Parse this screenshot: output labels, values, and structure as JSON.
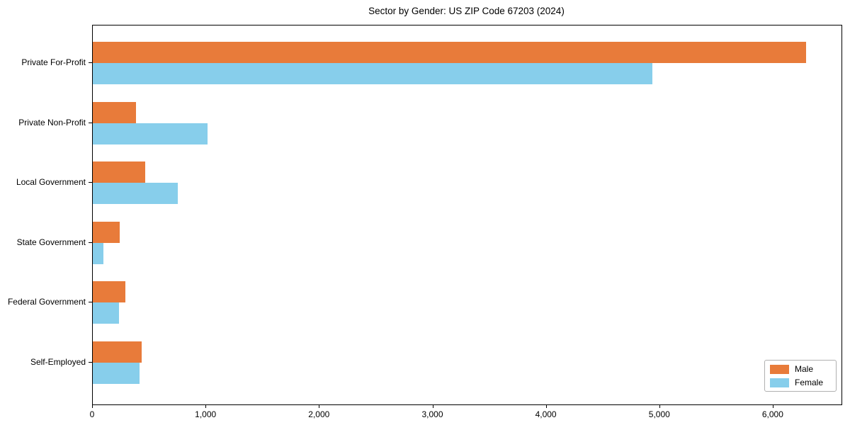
{
  "title": "Sector by Gender: US ZIP Code 67203 (2024)",
  "chart_data": {
    "type": "bar",
    "orientation": "horizontal",
    "title": "Sector by Gender: US ZIP Code 67203 (2024)",
    "categories": [
      "Private For-Profit",
      "Private Non-Profit",
      "Local Government",
      "State Government",
      "Federal Government",
      "Self-Employed"
    ],
    "series": [
      {
        "name": "Male",
        "color": "#e87b3a",
        "values": [
          6290,
          380,
          460,
          240,
          290,
          430
        ]
      },
      {
        "name": "Female",
        "color": "#87ceeb",
        "values": [
          4930,
          1010,
          750,
          95,
          230,
          410
        ]
      }
    ],
    "xlim": [
      0,
      6600
    ],
    "xticks": [
      0,
      1000,
      2000,
      3000,
      4000,
      5000,
      6000
    ],
    "xtick_labels": [
      "0",
      "1,000",
      "2,000",
      "3,000",
      "4,000",
      "5,000",
      "6,000"
    ],
    "xlabel": "",
    "ylabel": "",
    "grid": false,
    "legend_position": "lower right",
    "colors": {
      "male": "#e87b3a",
      "female": "#87ceeb",
      "frame": "#000000",
      "background": "#ffffff"
    }
  }
}
